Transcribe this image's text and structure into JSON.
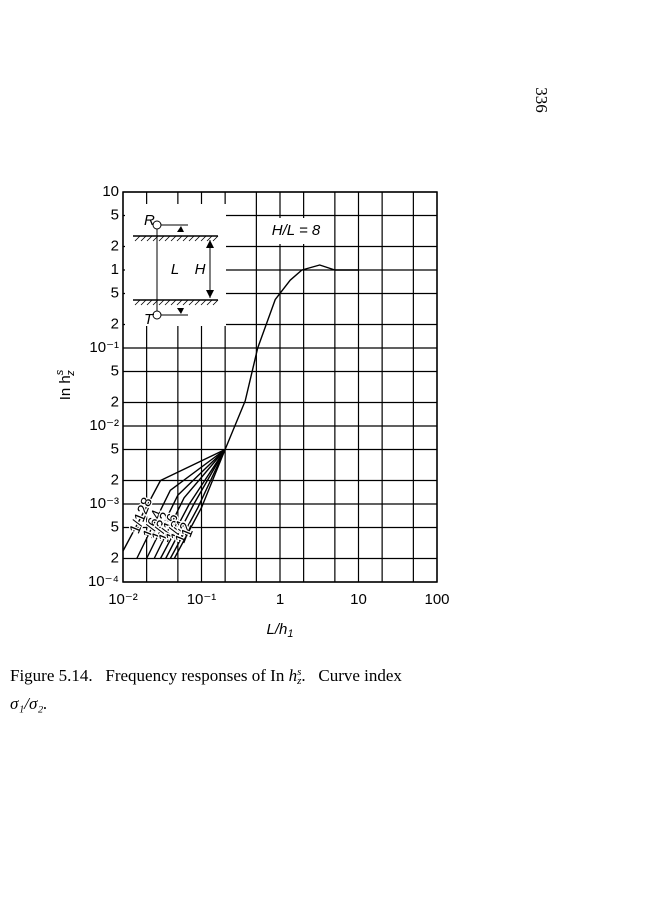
{
  "page_number": "336",
  "chart_data": {
    "type": "line",
    "log_x": true,
    "log_y": true,
    "grid": true,
    "annotation": "H/L = 8",
    "xlabel": "L/h",
    "xlabel_sub": "1",
    "ylabel": "In h",
    "ylabel_sub": "z",
    "ylabel_sup": "s",
    "xlim": [
      0.01,
      100
    ],
    "ylim": [
      0.0001,
      10
    ],
    "xticks": [
      {
        "value": 0.01,
        "label": "10⁻²"
      },
      {
        "value": 0.1,
        "label": "10⁻¹"
      },
      1,
      10,
      100
    ],
    "x_minor_grid": [
      0.02,
      0.05,
      0.2,
      0.5,
      2,
      5,
      20,
      50
    ],
    "yticks": [
      10,
      5,
      2,
      1,
      {
        "value": 0.5,
        "label": "5"
      },
      {
        "value": 0.2,
        "label": "2"
      },
      {
        "value": 0.1,
        "label": "10⁻¹"
      },
      {
        "value": 0.05,
        "label": "5"
      },
      {
        "value": 0.02,
        "label": "2"
      },
      {
        "value": 0.01,
        "label": "10⁻²"
      },
      {
        "value": 0.005,
        "label": "5"
      },
      {
        "value": 0.002,
        "label": "2"
      },
      {
        "value": 0.001,
        "label": "10⁻³"
      },
      {
        "value": 0.0005,
        "label": "5"
      },
      {
        "value": 0.0002,
        "label": "2"
      },
      {
        "value": 0.0001,
        "label": "10⁻⁴"
      }
    ],
    "series": [
      {
        "color": "#000000",
        "x": [
          0.2,
          0.36,
          0.52,
          0.87,
          1.35,
          1.9,
          3.2,
          5,
          10
        ],
        "values": [
          0.005,
          0.021,
          0.1,
          0.42,
          0.74,
          1.0,
          1.16,
          1.0,
          1.0
        ]
      },
      {
        "name": "1/128",
        "color": "#000000",
        "x": [
          0.01,
          0.03,
          0.2
        ],
        "values": [
          0.00025,
          0.002,
          0.005
        ]
      },
      {
        "name": "1/64",
        "color": "#000000",
        "x": [
          0.015,
          0.04,
          0.2
        ],
        "values": [
          0.0002,
          0.0015,
          0.005
        ]
      },
      {
        "name": "1/32",
        "color": "#000000",
        "x": [
          0.02,
          0.05,
          0.2
        ],
        "values": [
          0.0002,
          0.0013,
          0.005
        ]
      },
      {
        "name": "1/16",
        "color": "#000000",
        "x": [
          0.025,
          0.06,
          0.2
        ],
        "values": [
          0.0002,
          0.0012,
          0.005
        ]
      },
      {
        "name": "1/8",
        "color": "#000000",
        "x": [
          0.03,
          0.07,
          0.2
        ],
        "values": [
          0.0002,
          0.001,
          0.005
        ]
      },
      {
        "name": "1/4",
        "color": "#000000",
        "x": [
          0.035,
          0.08,
          0.2
        ],
        "values": [
          0.0002,
          0.001,
          0.005
        ]
      },
      {
        "name": "1/2",
        "color": "#000000",
        "x": [
          0.04,
          0.09,
          0.2
        ],
        "values": [
          0.0002,
          0.0009,
          0.005
        ]
      },
      {
        "name": "1",
        "color": "#000000",
        "x": [
          0.045,
          0.1,
          0.2
        ],
        "values": [
          0.0002,
          0.0009,
          0.005
        ]
      }
    ]
  },
  "inset": {
    "top": "R",
    "bottom": "T",
    "inner": "L",
    "outer": "H"
  },
  "caption": {
    "label": "Figure 5.14.",
    "text": "Frequency responses of In ",
    "var": "h",
    "sub": "z",
    "sup": "s",
    "rest": ".",
    "tail": "Curve index",
    "line2": "σ₁/σ₂."
  }
}
